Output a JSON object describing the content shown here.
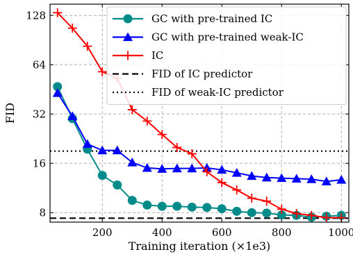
{
  "chart_data": {
    "type": "line",
    "xlabel": "Training iteration (×1e3)",
    "ylabel": "FID",
    "x_scale": "linear",
    "y_scale": "log2",
    "xlim": [
      25,
      1025
    ],
    "ylim": [
      7,
      150
    ],
    "x_ticks": [
      200,
      400,
      600,
      800,
      1000
    ],
    "y_ticks": [
      8,
      16,
      32,
      64,
      128
    ],
    "grid": true,
    "legend_position": "top-right",
    "series": [
      {
        "name": "GC with pre-trained IC",
        "color": "#008b8b",
        "marker": "circle",
        "x": [
          50,
          100,
          150,
          200,
          250,
          300,
          350,
          400,
          450,
          500,
          550,
          600,
          650,
          700,
          750,
          800,
          850,
          900,
          950,
          1000
        ],
        "y": [
          47,
          30,
          19.5,
          13.5,
          11.8,
          9.5,
          8.9,
          8.75,
          8.75,
          8.65,
          8.6,
          8.45,
          8.15,
          8.0,
          7.95,
          7.75,
          7.7,
          7.5,
          7.6,
          7.7
        ]
      },
      {
        "name": "GC with pre-trained weak-IC",
        "color": "#0000ff",
        "marker": "triangle",
        "x": [
          50,
          100,
          150,
          200,
          250,
          300,
          350,
          400,
          450,
          500,
          550,
          600,
          650,
          700,
          750,
          800,
          850,
          900,
          950,
          1000
        ],
        "y": [
          43,
          31,
          21,
          19.2,
          19.2,
          16.2,
          15.0,
          14.8,
          14.9,
          14.9,
          15.0,
          14.6,
          14.0,
          13.4,
          13.1,
          13.0,
          12.9,
          12.8,
          12.4,
          12.7
        ]
      },
      {
        "name": "IC",
        "color": "#ff0000",
        "marker": "plus",
        "x": [
          50,
          100,
          150,
          200,
          250,
          300,
          350,
          400,
          450,
          500,
          550,
          600,
          650,
          700,
          750,
          800,
          850,
          900,
          950,
          1000
        ],
        "y": [
          133,
          107,
          83,
          58,
          53,
          34,
          29,
          24,
          20,
          18.3,
          14.2,
          12.2,
          11.0,
          9.8,
          9.4,
          8.4,
          7.9,
          7.7,
          7.45,
          7.45
        ]
      }
    ],
    "reference_lines": [
      {
        "name": "FID of IC predictor",
        "y": 7.4,
        "style": "dashed",
        "color": "#000000"
      },
      {
        "name": "FID of weak-IC predictor",
        "y": 19.0,
        "style": "dotted",
        "color": "#000000"
      }
    ]
  }
}
